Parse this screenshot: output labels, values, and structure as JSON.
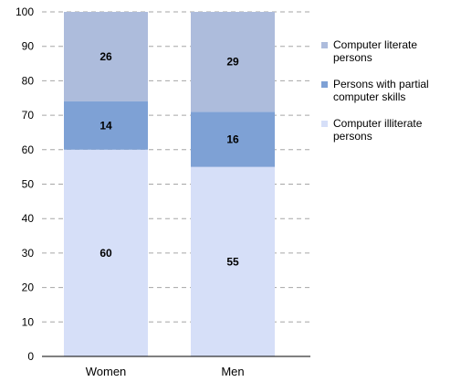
{
  "chart_data": {
    "type": "bar",
    "stacked": true,
    "categories": [
      "Women",
      "Men"
    ],
    "series": [
      {
        "name": "Computer illiterate persons",
        "values": [
          60,
          55
        ],
        "color": "#d6dff8"
      },
      {
        "name": "Persons with partial computer skills",
        "values": [
          14,
          16
        ],
        "color": "#7ea1d5"
      },
      {
        "name": "Computer literate persons",
        "values": [
          26,
          29
        ],
        "color": "#adbcdc"
      }
    ],
    "ylim": [
      0,
      100
    ],
    "yticks": [
      0,
      10,
      20,
      30,
      40,
      50,
      60,
      70,
      80,
      90,
      100
    ],
    "grid": true,
    "legend": "right",
    "title": "",
    "xlabel": "",
    "ylabel": ""
  }
}
